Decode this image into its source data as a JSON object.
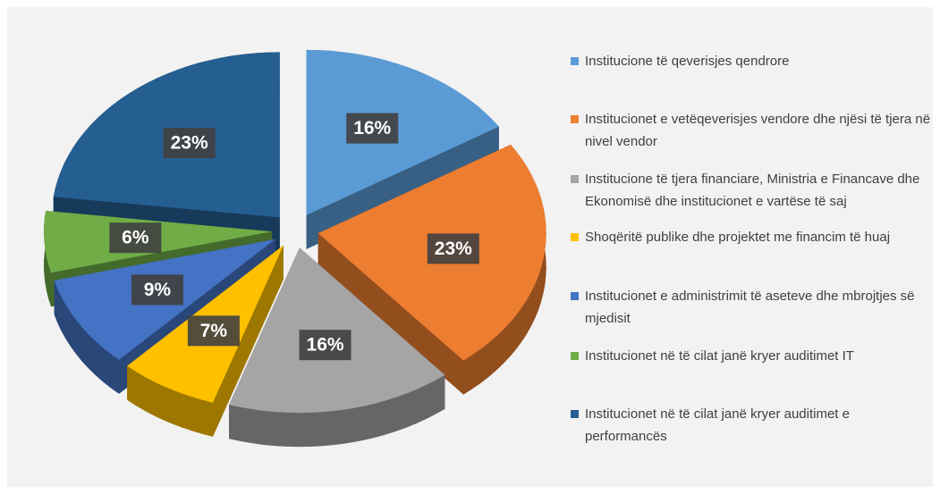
{
  "chart_data": {
    "type": "pie",
    "categories": [
      "Institucione të qeverisjes qendrore",
      "Institucionet e vetëqeverisjes vendore dhe njësi të tjera në nivel vendor",
      "Institucione të tjera financiare, Ministria e Financave dhe Ekonomisë dhe institucionet e vartëse të saj",
      "Shoqëritë publike dhe projektet me financim të huaj",
      "Institucionet e administrimit të aseteve dhe mbrojtjes së mjedisit",
      "Institucionet në të cilat janë kryer auditimet IT",
      "Institucionet në të cilat janë kryer auditimet e performancës"
    ],
    "values": [
      16,
      23,
      16,
      7,
      9,
      6,
      23
    ],
    "value_labels": [
      "16%",
      "23%",
      "16%",
      "7%",
      "9%",
      "6%",
      "23%"
    ],
    "colors": [
      "#5b9bd5",
      "#ed7d31",
      "#a5a5a5",
      "#ffc000",
      "#4472c4",
      "#70ad47",
      "#255e91"
    ],
    "legend": "right"
  }
}
